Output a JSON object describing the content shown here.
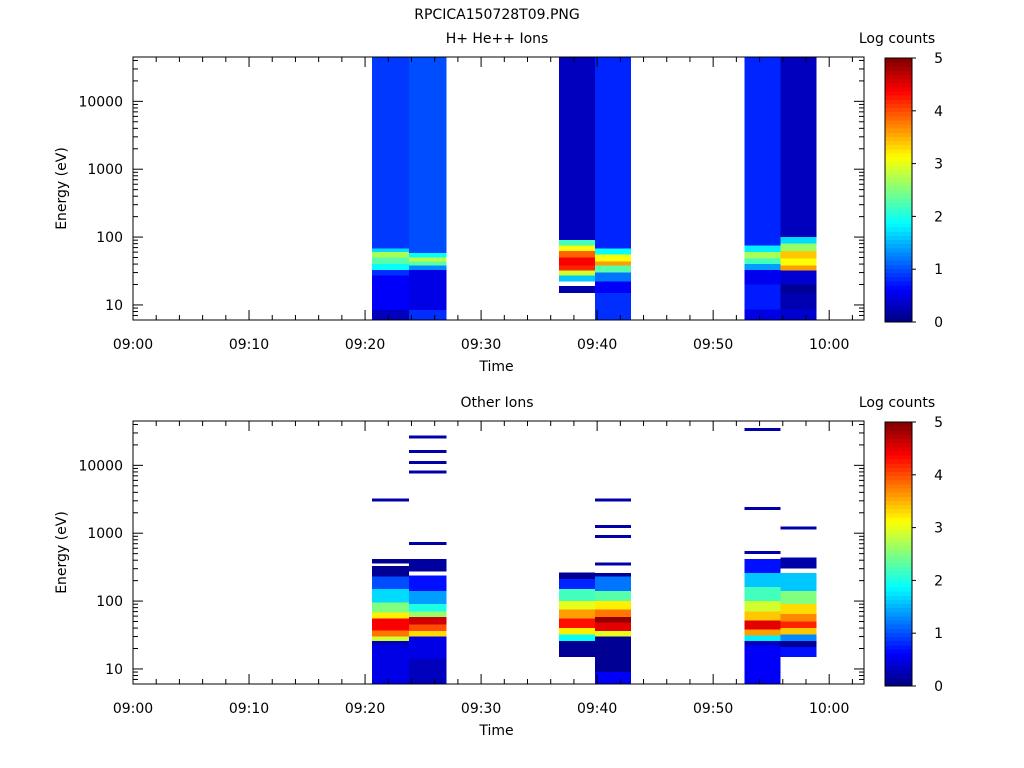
{
  "figure_title": "RPCICA150728T09.PNG",
  "colorscale": {
    "label": "Log counts",
    "min": 0,
    "max": 5,
    "ticks": [
      "0",
      "1",
      "2",
      "3",
      "4",
      "5"
    ],
    "colormap": "jet"
  },
  "chart_data": [
    {
      "type": "heatmap",
      "title": "H+ He++ Ions",
      "xlabel": "Time",
      "ylabel": "Energy (eV)",
      "xlim": [
        "09:00",
        "10:03"
      ],
      "ylim": [
        6,
        45000
      ],
      "yscale": "log",
      "xticks": [
        "09:00",
        "09:10",
        "09:20",
        "09:30",
        "09:40",
        "09:50",
        "10:00"
      ],
      "yticks": [
        "10",
        "100",
        "1000",
        "10000"
      ],
      "colorbar": {
        "label": "Log counts",
        "min": 0,
        "max": 5
      },
      "columns": [
        {
          "t_start": "09:20.6",
          "t_end": "09:23.8",
          "bands": [
            {
              "e_min": 6,
              "e_max": 8.5,
              "value": 0.3
            },
            {
              "e_min": 8.5,
              "e_max": 27,
              "value": 0.6
            },
            {
              "e_min": 27,
              "e_max": 33,
              "value": 0.85
            },
            {
              "e_min": 33,
              "e_max": 40,
              "value": 1.9
            },
            {
              "e_min": 40,
              "e_max": 50,
              "value": 2.3
            },
            {
              "e_min": 50,
              "e_max": 60,
              "value": 2.7
            },
            {
              "e_min": 60,
              "e_max": 68,
              "value": 1.7
            },
            {
              "e_min": 68,
              "e_max": 45000,
              "value": 0.9
            }
          ]
        },
        {
          "t_start": "09:23.8",
          "t_end": "09:27.0",
          "bands": [
            {
              "e_min": 6,
              "e_max": 8.5,
              "value": 0.85
            },
            {
              "e_min": 8.5,
              "e_max": 33,
              "value": 0.5
            },
            {
              "e_min": 33,
              "e_max": 38,
              "value": 1.3
            },
            {
              "e_min": 38,
              "e_max": 44,
              "value": 2.3
            },
            {
              "e_min": 44,
              "e_max": 50,
              "value": 2.8
            },
            {
              "e_min": 50,
              "e_max": 58,
              "value": 1.9
            },
            {
              "e_min": 58,
              "e_max": 45000,
              "value": 1.0
            }
          ]
        },
        {
          "t_start": "09:36.7",
          "t_end": "09:39.8",
          "bands": [
            {
              "e_min": 15,
              "e_max": 19,
              "value": 0.2
            },
            {
              "e_min": 19,
              "e_max": 22,
              "value": 0.0,
              "gap": true
            },
            {
              "e_min": 22,
              "e_max": 27,
              "value": 1.6
            },
            {
              "e_min": 27,
              "e_max": 32,
              "value": 2.9
            },
            {
              "e_min": 32,
              "e_max": 38,
              "value": 4.2
            },
            {
              "e_min": 38,
              "e_max": 50,
              "value": 4.4
            },
            {
              "e_min": 50,
              "e_max": 62,
              "value": 3.9
            },
            {
              "e_min": 62,
              "e_max": 75,
              "value": 3.1
            },
            {
              "e_min": 75,
              "e_max": 90,
              "value": 2.2
            },
            {
              "e_min": 90,
              "e_max": 45000,
              "value": 0.3
            }
          ]
        },
        {
          "t_start": "09:39.8",
          "t_end": "09:42.9",
          "bands": [
            {
              "e_min": 6,
              "e_max": 15,
              "value": 0.85
            },
            {
              "e_min": 15,
              "e_max": 22,
              "value": 0.6
            },
            {
              "e_min": 22,
              "e_max": 30,
              "value": 1.2
            },
            {
              "e_min": 30,
              "e_max": 38,
              "value": 2.3
            },
            {
              "e_min": 38,
              "e_max": 44,
              "value": 3.6
            },
            {
              "e_min": 44,
              "e_max": 55,
              "value": 3.1
            },
            {
              "e_min": 55,
              "e_max": 68,
              "value": 1.9
            },
            {
              "e_min": 68,
              "e_max": 45000,
              "value": 0.8
            }
          ]
        },
        {
          "t_start": "09:52.7",
          "t_end": "09:55.8",
          "bands": [
            {
              "e_min": 6,
              "e_max": 8.5,
              "value": 0.5
            },
            {
              "e_min": 8.5,
              "e_max": 20,
              "value": 0.75
            },
            {
              "e_min": 20,
              "e_max": 33,
              "value": 0.55
            },
            {
              "e_min": 33,
              "e_max": 40,
              "value": 1.4
            },
            {
              "e_min": 40,
              "e_max": 48,
              "value": 2.2
            },
            {
              "e_min": 48,
              "e_max": 60,
              "value": 2.7
            },
            {
              "e_min": 60,
              "e_max": 75,
              "value": 1.8
            },
            {
              "e_min": 75,
              "e_max": 45000,
              "value": 0.8
            }
          ]
        },
        {
          "t_start": "09:55.8",
          "t_end": "09:58.9",
          "bands": [
            {
              "e_min": 6,
              "e_max": 8.5,
              "value": 0.4
            },
            {
              "e_min": 8.5,
              "e_max": 15,
              "value": 0.25
            },
            {
              "e_min": 15,
              "e_max": 20,
              "value": 0.1
            },
            {
              "e_min": 20,
              "e_max": 32,
              "value": 0.4
            },
            {
              "e_min": 32,
              "e_max": 38,
              "value": 3.6
            },
            {
              "e_min": 38,
              "e_max": 48,
              "value": 3.1
            },
            {
              "e_min": 48,
              "e_max": 62,
              "value": 3.4
            },
            {
              "e_min": 62,
              "e_max": 80,
              "value": 2.6
            },
            {
              "e_min": 80,
              "e_max": 100,
              "value": 1.7
            },
            {
              "e_min": 100,
              "e_max": 45000,
              "value": 0.3
            }
          ]
        }
      ]
    },
    {
      "type": "heatmap",
      "title": "Other Ions",
      "xlabel": "Time",
      "ylabel": "Energy (eV)",
      "xlim": [
        "09:00",
        "10:03"
      ],
      "ylim": [
        6,
        45000
      ],
      "yscale": "log",
      "xticks": [
        "09:00",
        "09:10",
        "09:20",
        "09:30",
        "09:40",
        "09:50",
        "10:00"
      ],
      "yticks": [
        "10",
        "100",
        "1000",
        "10000"
      ],
      "colorbar": {
        "label": "Log counts",
        "min": 0,
        "max": 5
      },
      "columns": [
        {
          "t_start": "09:20.6",
          "t_end": "09:23.8",
          "bands": [
            {
              "e_min": 6,
              "e_max": 22,
              "value": 0.5
            },
            {
              "e_min": 22,
              "e_max": 26,
              "value": 0.3
            },
            {
              "e_min": 26,
              "e_max": 30,
              "value": 2.9
            },
            {
              "e_min": 30,
              "e_max": 37,
              "value": 3.8
            },
            {
              "e_min": 37,
              "e_max": 55,
              "value": 4.4
            },
            {
              "e_min": 55,
              "e_max": 68,
              "value": 3.2
            },
            {
              "e_min": 68,
              "e_max": 95,
              "value": 2.5
            },
            {
              "e_min": 95,
              "e_max": 150,
              "value": 1.7
            },
            {
              "e_min": 150,
              "e_max": 230,
              "value": 1.0
            },
            {
              "e_min": 230,
              "e_max": 330,
              "value": 0.1
            },
            {
              "e_min": 330,
              "e_max": 360,
              "value": 0.0,
              "gap": true
            },
            {
              "e_min": 360,
              "e_max": 420,
              "value": 0.1
            }
          ]
        },
        {
          "t_start": "09:23.8",
          "t_end": "09:27.0",
          "bands": [
            {
              "e_min": 6,
              "e_max": 14,
              "value": 0.3
            },
            {
              "e_min": 14,
              "e_max": 30,
              "value": 0.5
            },
            {
              "e_min": 30,
              "e_max": 36,
              "value": 3.3
            },
            {
              "e_min": 36,
              "e_max": 45,
              "value": 4.0
            },
            {
              "e_min": 45,
              "e_max": 58,
              "value": 4.6
            },
            {
              "e_min": 58,
              "e_max": 70,
              "value": 2.6
            },
            {
              "e_min": 70,
              "e_max": 90,
              "value": 2.0
            },
            {
              "e_min": 90,
              "e_max": 140,
              "value": 1.4
            },
            {
              "e_min": 140,
              "e_max": 240,
              "value": 0.7
            },
            {
              "e_min": 240,
              "e_max": 275,
              "value": 0.0,
              "gap": true
            },
            {
              "e_min": 275,
              "e_max": 420,
              "value": 0.15
            }
          ]
        },
        {
          "t_start": "09:36.7",
          "t_end": "09:39.8",
          "bands": [
            {
              "e_min": 15,
              "e_max": 26,
              "value": 0.1
            },
            {
              "e_min": 26,
              "e_max": 32,
              "value": 1.9
            },
            {
              "e_min": 32,
              "e_max": 40,
              "value": 3.2
            },
            {
              "e_min": 40,
              "e_max": 55,
              "value": 4.3
            },
            {
              "e_min": 55,
              "e_max": 75,
              "value": 3.6
            },
            {
              "e_min": 75,
              "e_max": 100,
              "value": 3.0
            },
            {
              "e_min": 100,
              "e_max": 150,
              "value": 2.2
            },
            {
              "e_min": 150,
              "e_max": 210,
              "value": 0.8
            },
            {
              "e_min": 210,
              "e_max": 265,
              "value": 0.1
            }
          ]
        },
        {
          "t_start": "09:39.8",
          "t_end": "09:42.9",
          "bands": [
            {
              "e_min": 6,
              "e_max": 9,
              "value": 0.6
            },
            {
              "e_min": 9,
              "e_max": 30,
              "value": 0.1
            },
            {
              "e_min": 30,
              "e_max": 36,
              "value": 3.0
            },
            {
              "e_min": 36,
              "e_max": 48,
              "value": 4.5
            },
            {
              "e_min": 48,
              "e_max": 58,
              "value": 4.9
            },
            {
              "e_min": 58,
              "e_max": 75,
              "value": 3.8
            },
            {
              "e_min": 75,
              "e_max": 100,
              "value": 3.2
            },
            {
              "e_min": 100,
              "e_max": 140,
              "value": 2.3
            },
            {
              "e_min": 140,
              "e_max": 230,
              "value": 1.2
            },
            {
              "e_min": 230,
              "e_max": 260,
              "value": 0.1
            }
          ]
        },
        {
          "t_start": "09:52.7",
          "t_end": "09:55.8",
          "bands": [
            {
              "e_min": 6,
              "e_max": 22,
              "value": 0.6
            },
            {
              "e_min": 22,
              "e_max": 26,
              "value": 0.3
            },
            {
              "e_min": 26,
              "e_max": 31,
              "value": 1.8
            },
            {
              "e_min": 31,
              "e_max": 38,
              "value": 3.6
            },
            {
              "e_min": 38,
              "e_max": 52,
              "value": 4.5
            },
            {
              "e_min": 52,
              "e_max": 70,
              "value": 3.4
            },
            {
              "e_min": 70,
              "e_max": 100,
              "value": 2.9
            },
            {
              "e_min": 100,
              "e_max": 160,
              "value": 2.2
            },
            {
              "e_min": 160,
              "e_max": 260,
              "value": 1.6
            },
            {
              "e_min": 260,
              "e_max": 420,
              "value": 0.7
            }
          ]
        },
        {
          "t_start": "09:55.8",
          "t_end": "09:58.9",
          "bands": [
            {
              "e_min": 15,
              "e_max": 21,
              "value": 0.7
            },
            {
              "e_min": 21,
              "e_max": 26,
              "value": 0.1
            },
            {
              "e_min": 26,
              "e_max": 32,
              "value": 1.3
            },
            {
              "e_min": 32,
              "e_max": 40,
              "value": 3.4
            },
            {
              "e_min": 40,
              "e_max": 50,
              "value": 4.2
            },
            {
              "e_min": 50,
              "e_max": 65,
              "value": 3.7
            },
            {
              "e_min": 65,
              "e_max": 90,
              "value": 3.3
            },
            {
              "e_min": 90,
              "e_max": 140,
              "value": 2.5
            },
            {
              "e_min": 140,
              "e_max": 260,
              "value": 1.6
            },
            {
              "e_min": 260,
              "e_max": 300,
              "value": 0.0,
              "gap": true
            },
            {
              "e_min": 300,
              "e_max": 440,
              "value": 0.2
            }
          ]
        }
      ],
      "sparse_high_energy_counts": [
        {
          "t_start": "09:20.6",
          "t_end": "09:23.8",
          "energies": [
            3100
          ]
        },
        {
          "t_start": "09:23.8",
          "t_end": "09:27.0",
          "energies": [
            700,
            8000,
            11000,
            16000,
            26000
          ]
        },
        {
          "t_start": "09:39.8",
          "t_end": "09:42.9",
          "energies": [
            350,
            900,
            1250,
            3100
          ]
        },
        {
          "t_start": "09:52.7",
          "t_end": "09:55.8",
          "energies": [
            520,
            2300,
            34000
          ]
        },
        {
          "t_start": "09:55.8",
          "t_end": "09:58.9",
          "energies": [
            1200
          ]
        }
      ]
    }
  ]
}
